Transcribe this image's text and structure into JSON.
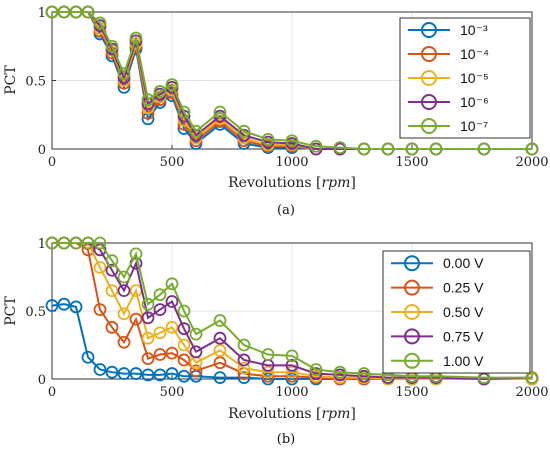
{
  "chart_data": [
    {
      "type": "line",
      "panel_label": "(a)",
      "xlabel": "Revolutions",
      "xlabel_unit": "rpm",
      "ylabel": "PCT",
      "xlim": [
        0,
        2000
      ],
      "ylim": [
        0,
        1
      ],
      "xticks": [
        0,
        500,
        1000,
        1500,
        2000
      ],
      "yticks": [
        0,
        0.5,
        1
      ],
      "ytick_labels": [
        "0",
        "0.5",
        "1"
      ],
      "grid": true,
      "legend_position": "top-right",
      "legend_title": "",
      "x": [
        0,
        50,
        100,
        150,
        200,
        250,
        300,
        350,
        400,
        450,
        500,
        550,
        600,
        700,
        800,
        900,
        1000,
        1100,
        1200,
        1300,
        1400,
        1500,
        1600,
        1800,
        2000
      ],
      "series": [
        {
          "name": "10⁻³",
          "color": "#0072BD",
          "values": [
            1,
            1,
            1,
            1,
            0.84,
            0.68,
            0.45,
            0.73,
            0.22,
            0.34,
            0.39,
            0.15,
            0.04,
            0.18,
            0.04,
            0.01,
            0.01,
            0,
            0,
            0,
            0,
            0,
            0,
            0,
            0
          ]
        },
        {
          "name": "10⁻⁴",
          "color": "#D95319",
          "values": [
            1,
            1,
            1,
            1,
            0.86,
            0.7,
            0.48,
            0.75,
            0.26,
            0.36,
            0.41,
            0.18,
            0.06,
            0.2,
            0.06,
            0.02,
            0.02,
            0,
            0,
            0,
            0,
            0,
            0,
            0,
            0
          ]
        },
        {
          "name": "10⁻⁵",
          "color": "#EDB120",
          "values": [
            1,
            1,
            1,
            1,
            0.88,
            0.72,
            0.5,
            0.77,
            0.3,
            0.38,
            0.43,
            0.21,
            0.08,
            0.22,
            0.08,
            0.03,
            0.03,
            0,
            0,
            0,
            0,
            0,
            0,
            0,
            0
          ]
        },
        {
          "name": "10⁻⁶",
          "color": "#7E2F8E",
          "values": [
            1,
            1,
            1,
            1,
            0.9,
            0.73,
            0.52,
            0.79,
            0.33,
            0.4,
            0.45,
            0.24,
            0.1,
            0.24,
            0.1,
            0.05,
            0.04,
            0,
            0,
            0,
            0,
            0,
            0,
            0,
            0
          ]
        },
        {
          "name": "10⁻⁷",
          "color": "#77AC30",
          "values": [
            1,
            1,
            1,
            1,
            0.92,
            0.75,
            0.55,
            0.81,
            0.36,
            0.42,
            0.47,
            0.27,
            0.13,
            0.27,
            0.13,
            0.07,
            0.06,
            0.02,
            0.01,
            0,
            0,
            0,
            0,
            0,
            0
          ]
        }
      ]
    },
    {
      "type": "line",
      "panel_label": "(b)",
      "xlabel": "Revolutions",
      "xlabel_unit": "rpm",
      "ylabel": "PCT",
      "xlim": [
        0,
        2000
      ],
      "ylim": [
        0,
        1
      ],
      "xticks": [
        0,
        500,
        1000,
        1500,
        2000
      ],
      "yticks": [
        0,
        0.5,
        1
      ],
      "ytick_labels": [
        "0",
        "0.5",
        "1"
      ],
      "grid": true,
      "legend_position": "top-right",
      "legend_title": "",
      "x": [
        0,
        50,
        100,
        150,
        200,
        250,
        300,
        350,
        400,
        450,
        500,
        550,
        600,
        700,
        800,
        900,
        1000,
        1100,
        1200,
        1300,
        1400,
        1500,
        1600,
        1800,
        2000
      ],
      "series": [
        {
          "name": "0.00 V",
          "color": "#0072BD",
          "values": [
            0.54,
            0.55,
            0.53,
            0.16,
            0.07,
            0.05,
            0.04,
            0.04,
            0.03,
            0.03,
            0.04,
            0.02,
            0.02,
            0.01,
            0.01,
            0,
            0,
            0,
            0,
            0,
            0,
            0,
            0,
            0,
            0
          ]
        },
        {
          "name": "0.25 V",
          "color": "#D95319",
          "values": [
            1,
            1,
            1,
            0.95,
            0.51,
            0.38,
            0.27,
            0.44,
            0.15,
            0.18,
            0.19,
            0.14,
            0.06,
            0.12,
            0.04,
            0.02,
            0.02,
            0.01,
            0,
            0,
            0,
            0,
            0,
            0,
            0
          ]
        },
        {
          "name": "0.50 V",
          "color": "#EDB120",
          "values": [
            1,
            1,
            1,
            1,
            0.82,
            0.65,
            0.48,
            0.65,
            0.3,
            0.34,
            0.38,
            0.25,
            0.12,
            0.21,
            0.08,
            0.05,
            0.05,
            0.02,
            0.01,
            0.01,
            0,
            0,
            0,
            0,
            0
          ]
        },
        {
          "name": "0.75 V",
          "color": "#7E2F8E",
          "values": [
            1,
            1,
            1,
            1,
            0.95,
            0.8,
            0.65,
            0.85,
            0.45,
            0.51,
            0.57,
            0.37,
            0.2,
            0.3,
            0.14,
            0.1,
            0.1,
            0.04,
            0.03,
            0.02,
            0.01,
            0.01,
            0.01,
            0,
            0.01
          ]
        },
        {
          "name": "1.00 V",
          "color": "#77AC30",
          "values": [
            1,
            1,
            1,
            1,
            1,
            0.87,
            0.75,
            0.92,
            0.55,
            0.62,
            0.7,
            0.5,
            0.33,
            0.43,
            0.25,
            0.18,
            0.17,
            0.07,
            0.05,
            0.04,
            0.03,
            0.02,
            0.02,
            0.01,
            0.01
          ]
        }
      ]
    }
  ]
}
